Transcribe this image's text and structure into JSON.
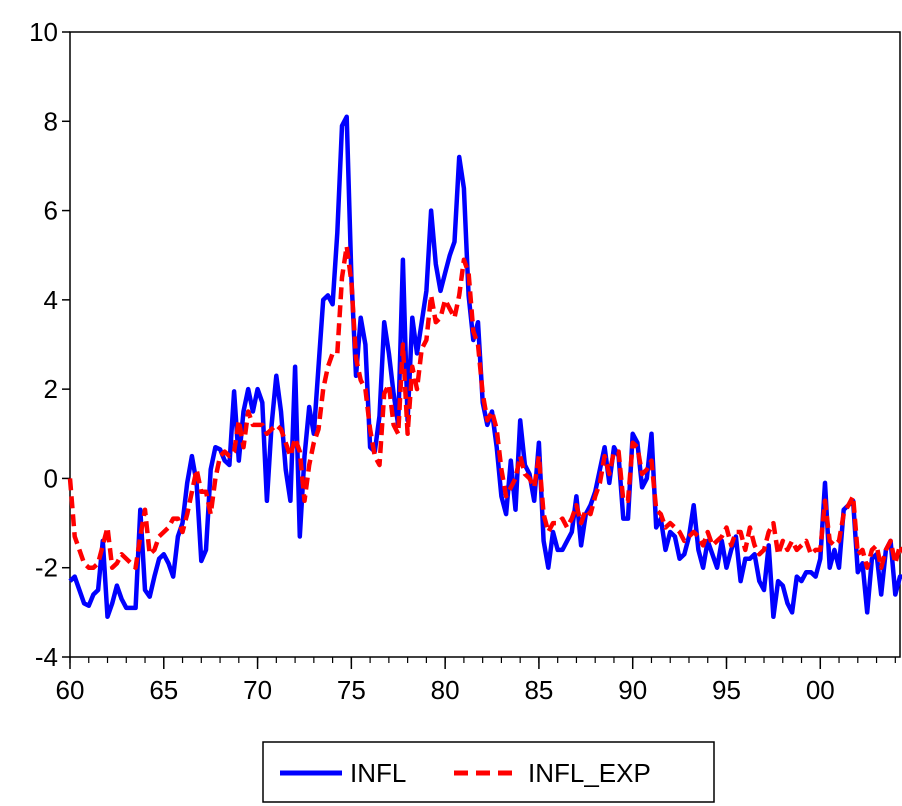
{
  "chart_data": {
    "type": "line",
    "title": "",
    "xlabel": "",
    "ylabel": "",
    "x_start": 1960.0,
    "x_step": 0.25,
    "xlim": [
      1960,
      2004.25
    ],
    "ylim": [
      -4,
      10
    ],
    "yticks": [
      -4,
      -2,
      0,
      2,
      4,
      6,
      8,
      10
    ],
    "xticks": [
      {
        "value": 1960,
        "label": "60"
      },
      {
        "value": 1965,
        "label": "65"
      },
      {
        "value": 1970,
        "label": "70"
      },
      {
        "value": 1975,
        "label": "75"
      },
      {
        "value": 1980,
        "label": "80"
      },
      {
        "value": 1985,
        "label": "85"
      },
      {
        "value": 1990,
        "label": "90"
      },
      {
        "value": 1995,
        "label": "95"
      },
      {
        "value": 2000,
        "label": "00"
      }
    ],
    "grid": false,
    "legend_position": "bottom-center",
    "series": [
      {
        "name": "INFL",
        "color": "#0000ff",
        "style": "solid",
        "values": [
          -2.3,
          -2.2,
          -2.5,
          -2.8,
          -2.85,
          -2.6,
          -2.5,
          -1.4,
          -3.1,
          -2.8,
          -2.4,
          -2.7,
          -2.9,
          -2.9,
          -2.9,
          -0.7,
          -2.5,
          -2.65,
          -2.2,
          -1.8,
          -1.7,
          -1.9,
          -2.2,
          -1.3,
          -1.0,
          -0.1,
          0.5,
          -0.1,
          -1.85,
          -1.6,
          0.2,
          0.7,
          0.65,
          0.4,
          0.3,
          1.95,
          0.4,
          1.5,
          2.0,
          1.5,
          2.0,
          1.7,
          -0.5,
          1.2,
          2.3,
          1.5,
          0.2,
          -0.5,
          2.5,
          -1.3,
          0.5,
          1.6,
          1.0,
          2.5,
          4.0,
          4.1,
          3.9,
          5.5,
          7.9,
          8.1,
          4.5,
          2.3,
          3.6,
          3.0,
          0.7,
          0.6,
          1.4,
          3.5,
          2.8,
          1.9,
          1.2,
          4.9,
          1.3,
          3.6,
          2.8,
          3.5,
          4.2,
          6.0,
          4.8,
          4.2,
          4.6,
          5.0,
          5.3,
          7.2,
          6.5,
          4.1,
          3.1,
          3.5,
          1.7,
          1.2,
          1.5,
          0.7,
          -0.4,
          -0.8,
          0.4,
          -0.7,
          1.3,
          0.3,
          0.1,
          -0.5,
          0.8,
          -1.4,
          -2.0,
          -1.2,
          -1.6,
          -1.6,
          -1.4,
          -1.2,
          -0.4,
          -1.5,
          -0.8,
          -0.6,
          -0.3,
          0.2,
          0.7,
          -0.1,
          0.7,
          0.5,
          -0.9,
          -0.9,
          1.0,
          0.8,
          -0.2,
          0.0,
          1.0,
          -1.1,
          -0.9,
          -1.6,
          -1.2,
          -1.3,
          -1.8,
          -1.7,
          -1.3,
          -0.6,
          -1.6,
          -2.0,
          -1.4,
          -1.7,
          -2.0,
          -1.4,
          -2.0,
          -1.6,
          -1.3,
          -2.3,
          -1.8,
          -1.8,
          -1.7,
          -2.3,
          -2.5,
          -1.5,
          -3.1,
          -2.3,
          -2.4,
          -2.8,
          -3.0,
          -2.2,
          -2.3,
          -2.1,
          -2.1,
          -2.2,
          -1.8,
          -0.1,
          -2.0,
          -1.6,
          -2.0,
          -0.7,
          -0.6,
          -0.5,
          -2.1,
          -1.9,
          -3.0,
          -1.8,
          -1.7,
          -2.6,
          -1.6,
          -1.4,
          -2.6,
          -2.2,
          -2.2,
          -0.8
        ]
      },
      {
        "name": "INFL_EXP",
        "color": "#ff0000",
        "style": "dashed",
        "values": [
          0.0,
          -1.3,
          -1.6,
          -1.9,
          -2.0,
          -2.0,
          -1.9,
          -1.5,
          -1.1,
          -2.0,
          -1.9,
          -1.7,
          -1.8,
          -1.9,
          -2.0,
          -1.3,
          -0.7,
          -1.7,
          -1.6,
          -1.3,
          -1.2,
          -1.1,
          -0.9,
          -0.9,
          -1.2,
          -0.8,
          -0.3,
          0.2,
          -0.3,
          -0.3,
          -0.8,
          0.0,
          0.5,
          0.6,
          0.5,
          0.6,
          1.3,
          0.7,
          1.5,
          1.2,
          1.2,
          1.2,
          1.0,
          1.1,
          1.2,
          1.1,
          0.8,
          0.5,
          0.9,
          0.6,
          -0.5,
          0.3,
          0.8,
          1.1,
          2.0,
          2.5,
          2.8,
          2.8,
          4.5,
          5.2,
          4.4,
          2.7,
          2.2,
          2.0,
          1.1,
          0.5,
          0.3,
          1.9,
          2.1,
          1.2,
          1.0,
          3.0,
          1.0,
          2.5,
          2.0,
          2.9,
          3.1,
          4.1,
          3.5,
          3.6,
          4.0,
          3.8,
          3.6,
          4.1,
          4.9,
          4.6,
          3.3,
          3.0,
          1.9,
          1.3,
          1.5,
          1.1,
          0.2,
          -0.4,
          -0.2,
          0.0,
          0.5,
          0.1,
          0.0,
          -0.2,
          0.5,
          -0.8,
          -1.2,
          -1.0,
          -1.0,
          -0.9,
          -1.1,
          -0.9,
          -0.6,
          -1.0,
          -0.7,
          -0.8,
          -0.4,
          -0.1,
          0.5,
          0.1,
          0.6,
          0.6,
          -0.5,
          -0.5,
          0.8,
          0.7,
          0.1,
          0.2,
          0.4,
          -0.7,
          -0.8,
          -1.1,
          -1.0,
          -1.1,
          -1.2,
          -1.4,
          -1.3,
          -1.2,
          -1.3,
          -1.5,
          -1.2,
          -1.5,
          -1.4,
          -1.3,
          -1.1,
          -1.5,
          -1.2,
          -1.2,
          -1.6,
          -1.1,
          -1.5,
          -1.7,
          -1.6,
          -1.2,
          -1.0,
          -1.7,
          -1.4,
          -1.6,
          -1.4,
          -1.6,
          -1.5,
          -1.4,
          -1.7,
          -1.6,
          -1.6,
          -0.5,
          -1.4,
          -1.5,
          -1.4,
          -0.8,
          -0.6,
          -0.4,
          -1.7,
          -1.6,
          -2.0,
          -1.6,
          -1.5,
          -2.0,
          -1.6,
          -1.4,
          -1.9,
          -1.5,
          -1.7,
          -1.2
        ]
      }
    ]
  }
}
